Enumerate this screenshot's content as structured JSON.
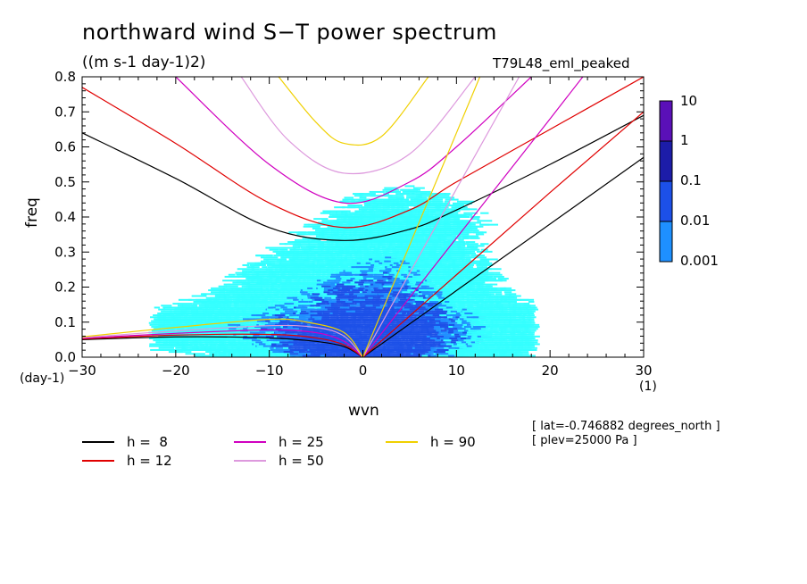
{
  "title": "northward wind S−T power spectrum",
  "units_label": "((m s-1 day-1)2)",
  "run_label": "T79L48_eml_peaked",
  "y_axis_label": "freq",
  "y_unit": "(day-1)",
  "x_axis_label": "wvn",
  "x_unit": "(1)",
  "meta_lat": "[ lat=-0.746882 degrees_north ]",
  "meta_plev": "[ plev=25000 Pa ]",
  "colorbar": {
    "levels": [
      "10",
      "1",
      "0.1",
      "0.01",
      "0.001"
    ],
    "colors": [
      "#5a10b8",
      "#1c1ca8",
      "#1c50e8",
      "#1e90ff",
      "#33ffff"
    ]
  },
  "legend": [
    {
      "label": "h =  8",
      "color": "#000000"
    },
    {
      "label": "h = 12",
      "color": "#e00000"
    },
    {
      "label": "h = 25",
      "color": "#d000c0"
    },
    {
      "label": "h = 50",
      "color": "#dd99dd"
    },
    {
      "label": "h = 90",
      "color": "#f0d000"
    }
  ],
  "chart_data": {
    "type": "heatmap",
    "xlim": [
      -30,
      30
    ],
    "ylim": [
      0,
      0.8
    ],
    "x_ticks": [
      -30,
      -20,
      -10,
      0,
      10,
      20,
      30
    ],
    "y_ticks": [
      0.0,
      0.1,
      0.2,
      0.3,
      0.4,
      0.5,
      0.6,
      0.7,
      0.8
    ],
    "x_tick_labels": [
      "−30",
      "−20",
      "−10",
      "0",
      "10",
      "20",
      "30"
    ],
    "y_tick_labels": [
      "0.0",
      "0.1",
      "0.2",
      "0.3",
      "0.4",
      "0.5",
      "0.6",
      "0.7",
      "0.8"
    ],
    "dispersion_curves": [
      {
        "name": "h =  8",
        "color": "#000000",
        "rossby": [
          [
            -30,
            0.05
          ],
          [
            -20,
            0.058
          ],
          [
            -10,
            0.055
          ],
          [
            -5,
            0.045
          ],
          [
            -2,
            0.03
          ],
          [
            0,
            0.0
          ]
        ],
        "gravity": [
          [
            -30,
            0.64
          ],
          [
            -20,
            0.51
          ],
          [
            -10,
            0.37
          ],
          [
            -2,
            0.333
          ],
          [
            5,
            0.365
          ],
          [
            10,
            0.42
          ],
          [
            20,
            0.55
          ],
          [
            30,
            0.69
          ]
        ],
        "kelvin": [
          [
            0,
            0.0
          ],
          [
            10,
            0.19
          ],
          [
            20,
            0.38
          ],
          [
            30,
            0.57
          ]
        ]
      },
      {
        "name": "h = 12",
        "color": "#e00000",
        "rossby": [
          [
            -30,
            0.052
          ],
          [
            -20,
            0.063
          ],
          [
            -10,
            0.065
          ],
          [
            -5,
            0.055
          ],
          [
            -2,
            0.035
          ],
          [
            0,
            0.0
          ]
        ],
        "gravity": [
          [
            -30,
            0.77
          ],
          [
            -20,
            0.61
          ],
          [
            -10,
            0.44
          ],
          [
            -2,
            0.37
          ],
          [
            5,
            0.42
          ],
          [
            10,
            0.5
          ],
          [
            20,
            0.65
          ],
          [
            30,
            0.8
          ]
        ],
        "kelvin": [
          [
            0,
            0.0
          ],
          [
            10,
            0.235
          ],
          [
            20,
            0.47
          ],
          [
            30,
            0.7
          ]
        ]
      },
      {
        "name": "h = 25",
        "color": "#d000c0",
        "rossby": [
          [
            -30,
            0.054
          ],
          [
            -20,
            0.068
          ],
          [
            -10,
            0.078
          ],
          [
            -5,
            0.07
          ],
          [
            -2,
            0.045
          ],
          [
            0,
            0.0
          ]
        ],
        "gravity": [
          [
            -20,
            0.8
          ],
          [
            -10,
            0.55
          ],
          [
            -2,
            0.44
          ],
          [
            5,
            0.5
          ],
          [
            10,
            0.6
          ],
          [
            18,
            0.8
          ]
        ],
        "kelvin": [
          [
            0,
            0.0
          ],
          [
            10,
            0.34
          ],
          [
            20,
            0.68
          ],
          [
            23.5,
            0.8
          ]
        ]
      },
      {
        "name": "h = 50",
        "color": "#dd99dd",
        "rossby": [
          [
            -30,
            0.056
          ],
          [
            -20,
            0.075
          ],
          [
            -10,
            0.09
          ],
          [
            -5,
            0.085
          ],
          [
            -2,
            0.06
          ],
          [
            0,
            0.0
          ]
        ],
        "gravity": [
          [
            -13,
            0.8
          ],
          [
            -8,
            0.62
          ],
          [
            -2,
            0.525
          ],
          [
            5,
            0.58
          ],
          [
            12,
            0.8
          ]
        ],
        "kelvin": [
          [
            0,
            0.0
          ],
          [
            10,
            0.48
          ],
          [
            16.7,
            0.8
          ]
        ]
      },
      {
        "name": "h = 90",
        "color": "#f0d000",
        "rossby": [
          [
            -30,
            0.058
          ],
          [
            -20,
            0.085
          ],
          [
            -10,
            0.108
          ],
          [
            -6,
            0.1
          ],
          [
            -2,
            0.07
          ],
          [
            0,
            0.0
          ]
        ],
        "gravity": [
          [
            -9,
            0.8
          ],
          [
            -5,
            0.67
          ],
          [
            -2,
            0.61
          ],
          [
            2,
            0.63
          ],
          [
            7,
            0.8
          ]
        ],
        "kelvin": [
          [
            0,
            0.0
          ],
          [
            10,
            0.64
          ],
          [
            12.5,
            0.8
          ]
        ]
      }
    ],
    "heat_blobs": [
      {
        "x": 0,
        "y": 0.03,
        "sx": 6,
        "sy": 0.04,
        "amp": 1.0
      },
      {
        "x": 3,
        "y": 0.18,
        "sx": 6,
        "sy": 0.12,
        "amp": 0.55
      },
      {
        "x": -3,
        "y": 0.14,
        "sx": 8,
        "sy": 0.1,
        "amp": 0.45
      },
      {
        "x": 8,
        "y": 0.08,
        "sx": 9,
        "sy": 0.06,
        "amp": 0.45
      },
      {
        "x": -12,
        "y": 0.08,
        "sx": 10,
        "sy": 0.05,
        "amp": 0.35
      },
      {
        "x": 5,
        "y": 0.4,
        "sx": 7,
        "sy": 0.08,
        "amp": 0.18
      }
    ]
  }
}
